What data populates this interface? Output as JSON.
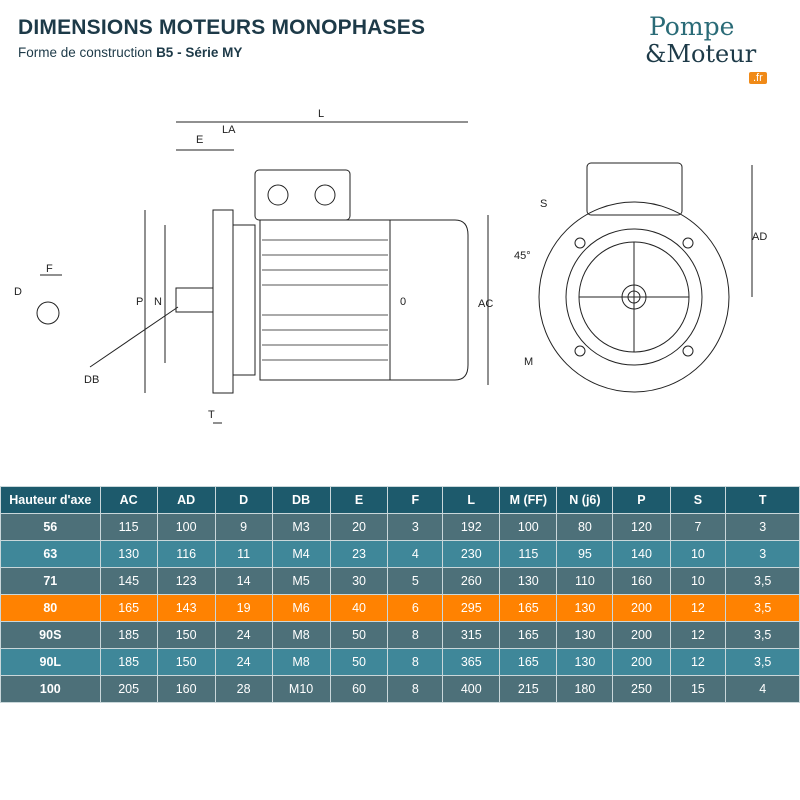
{
  "header": {
    "title": "DIMENSIONS MOTEURS MONOPHASES",
    "subtitle_prefix": "Forme de construction ",
    "subtitle_bold": "B5 - Série MY"
  },
  "logo": {
    "line1": "Pompe",
    "line2": "&Moteur",
    "badge": ".fr",
    "colors": {
      "teal": "#2a6b77",
      "orange": "#f08a18"
    }
  },
  "drawing": {
    "labels": {
      "L": "L",
      "E": "E",
      "LA": "LA",
      "F": "F",
      "D": "D",
      "P": "P",
      "N": "N",
      "DB": "DB",
      "T": "T",
      "AC": "AC",
      "O": "0",
      "S": "S",
      "angle": "45°",
      "AD": "AD",
      "M": "M"
    }
  },
  "table": {
    "columns": [
      "Hauteur d'axe",
      "AC",
      "AD",
      "D",
      "DB",
      "E",
      "F",
      "L",
      "M (FF)",
      "N (j6)",
      "P",
      "S",
      "T"
    ],
    "rows": [
      [
        "56",
        "115",
        "100",
        "9",
        "M3",
        "20",
        "3",
        "192",
        "100",
        "80",
        "120",
        "7",
        "3"
      ],
      [
        "63",
        "130",
        "116",
        "11",
        "M4",
        "23",
        "4",
        "230",
        "115",
        "95",
        "140",
        "10",
        "3"
      ],
      [
        "71",
        "145",
        "123",
        "14",
        "M5",
        "30",
        "5",
        "260",
        "130",
        "110",
        "160",
        "10",
        "3,5"
      ],
      [
        "80",
        "165",
        "143",
        "19",
        "M6",
        "40",
        "6",
        "295",
        "165",
        "130",
        "200",
        "12",
        "3,5"
      ],
      [
        "90S",
        "185",
        "150",
        "24",
        "M8",
        "50",
        "8",
        "315",
        "165",
        "130",
        "200",
        "12",
        "3,5"
      ],
      [
        "90L",
        "185",
        "150",
        "24",
        "M8",
        "50",
        "8",
        "365",
        "165",
        "130",
        "200",
        "12",
        "3,5"
      ],
      [
        "100",
        "205",
        "160",
        "28",
        "M10",
        "60",
        "8",
        "400",
        "215",
        "180",
        "250",
        "15",
        "4"
      ]
    ],
    "highlighted_row": "80",
    "colors": {
      "header": "#1d5a6c",
      "row_dark": "#4d7079",
      "row_light": "#3f8799",
      "highlight": "#ff8201"
    }
  }
}
